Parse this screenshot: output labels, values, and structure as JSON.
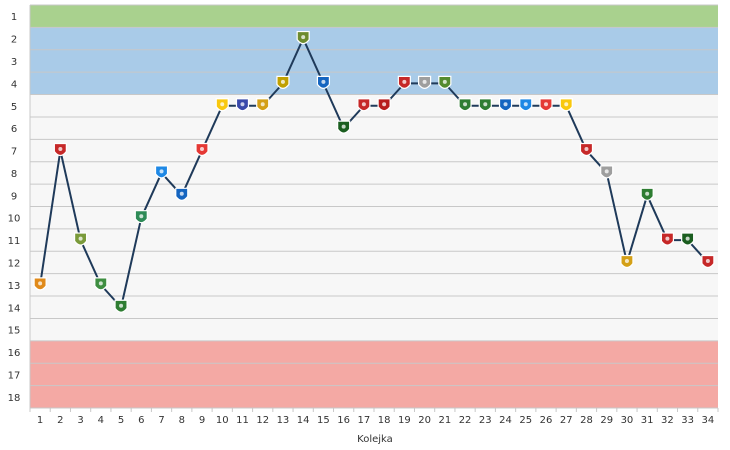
{
  "chart_data": {
    "type": "line",
    "xlabel": "Kolejka",
    "ylabel": "",
    "x": [
      1,
      2,
      3,
      4,
      5,
      6,
      7,
      8,
      9,
      10,
      11,
      12,
      13,
      14,
      15,
      16,
      17,
      18,
      19,
      20,
      21,
      22,
      23,
      24,
      25,
      26,
      27,
      28,
      29,
      30,
      31,
      32,
      33,
      34
    ],
    "y": [
      13,
      7,
      11,
      13,
      14,
      10,
      8,
      9,
      7,
      5,
      5,
      5,
      4,
      2,
      4,
      6,
      5,
      5,
      4,
      4,
      4,
      5,
      5,
      5,
      5,
      5,
      5,
      7,
      8,
      12,
      9,
      11,
      11,
      12
    ],
    "ylim": [
      1,
      18
    ],
    "y_inverted": true,
    "yticks": [
      1,
      2,
      3,
      4,
      5,
      6,
      7,
      8,
      9,
      10,
      11,
      12,
      13,
      14,
      15,
      16,
      17,
      18
    ],
    "grid": true,
    "bands": [
      {
        "from": 1,
        "to": 1,
        "color": "#a9d18e"
      },
      {
        "from": 2,
        "to": 4,
        "color": "#a9cbe8"
      },
      {
        "from": 5,
        "to": 15,
        "color": "#f7f7f7"
      },
      {
        "from": 16,
        "to": 18,
        "color": "#f4a9a4"
      }
    ],
    "line_color": "#1f3a5a",
    "marker_icon": "club-crest-icon",
    "marker_colors": [
      "#e08a1a",
      "#c62828",
      "#7a9a3a",
      "#3e8e41",
      "#2e7d32",
      "#2e8b57",
      "#1e88e5",
      "#1565c0",
      "#e53935",
      "#f9c80e",
      "#3949ab",
      "#d4a017",
      "#c0a000",
      "#6d8b2e",
      "#1565c0",
      "#1b5e20",
      "#c62828",
      "#b71c1c",
      "#c62828",
      "#9e9e9e",
      "#558b2f",
      "#2e7d32",
      "#2e7d32",
      "#1565c0",
      "#1e88e5",
      "#e53935",
      "#f9c80e",
      "#c62828",
      "#9e9e9e",
      "#d4a017",
      "#2e7d32",
      "#c62828",
      "#1b5e20",
      "#c62828"
    ]
  }
}
